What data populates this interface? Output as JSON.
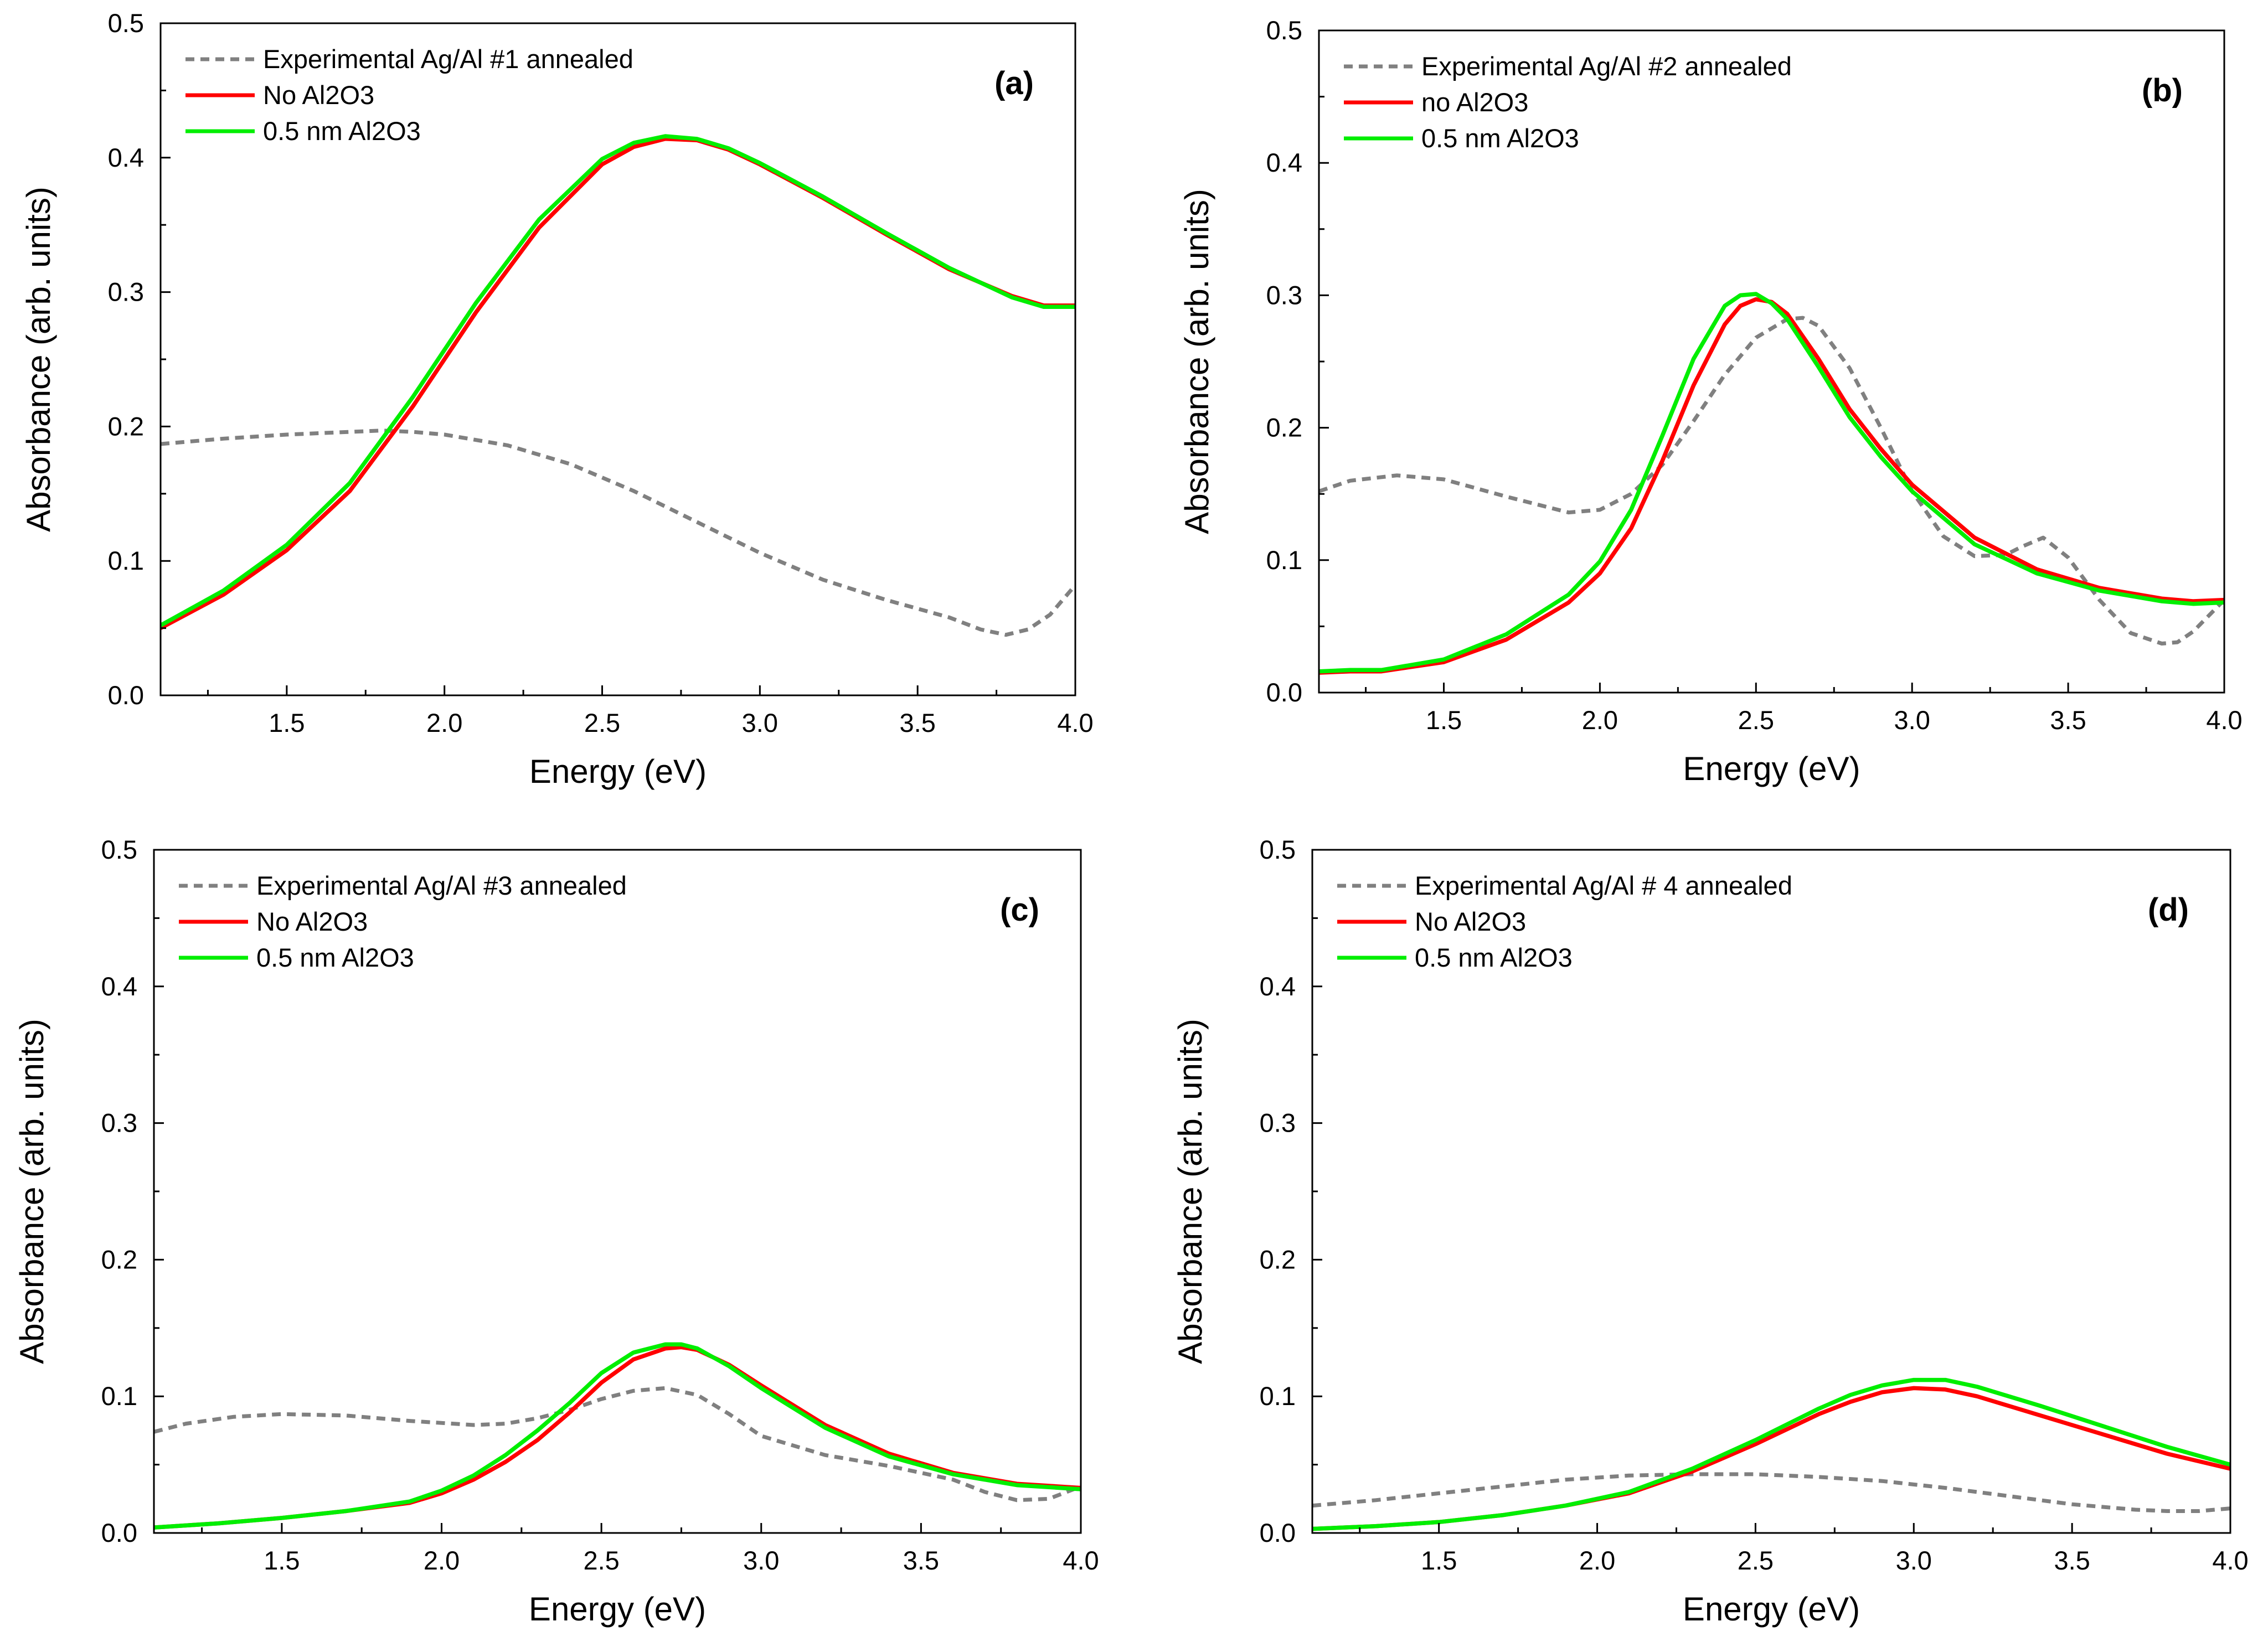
{
  "chart_data": [
    {
      "type": "line",
      "panel_label": "(a)",
      "xlabel": "Energy (eV)",
      "ylabel": "Absorbance (arb. units)",
      "xlim": [
        1.1,
        4.0
      ],
      "ylim": [
        0.0,
        0.5
      ],
      "xticks": [
        "1.5",
        "2.0",
        "2.5",
        "3.0",
        "3.5",
        "4.0"
      ],
      "yticks": [
        "0.0",
        "0.1",
        "0.2",
        "0.3",
        "0.4",
        "0.5"
      ],
      "legend_position": "top-left",
      "series": [
        {
          "name": "Experimental Ag/Al #1 annealed",
          "color": "#808080",
          "style": "dashed",
          "x": [
            1.1,
            1.3,
            1.5,
            1.7,
            1.8,
            1.9,
            2.0,
            2.2,
            2.4,
            2.6,
            2.8,
            3.0,
            3.2,
            3.4,
            3.6,
            3.7,
            3.78,
            3.85,
            3.92,
            4.0
          ],
          "y": [
            0.187,
            0.191,
            0.194,
            0.196,
            0.197,
            0.196,
            0.194,
            0.186,
            0.172,
            0.152,
            0.129,
            0.106,
            0.086,
            0.071,
            0.058,
            0.049,
            0.045,
            0.049,
            0.06,
            0.082
          ]
        },
        {
          "name": "No Al2O3",
          "color": "#ff0000",
          "style": "solid",
          "x": [
            1.1,
            1.3,
            1.5,
            1.7,
            1.9,
            2.1,
            2.3,
            2.5,
            2.6,
            2.7,
            2.8,
            2.9,
            3.0,
            3.2,
            3.4,
            3.6,
            3.8,
            3.9,
            4.0
          ],
          "y": [
            0.05,
            0.075,
            0.108,
            0.152,
            0.215,
            0.285,
            0.348,
            0.395,
            0.408,
            0.414,
            0.413,
            0.406,
            0.395,
            0.37,
            0.343,
            0.317,
            0.297,
            0.29,
            0.29
          ]
        },
        {
          "name": "0.5 nm Al2O3",
          "color": "#00ee00",
          "style": "solid",
          "x": [
            1.1,
            1.3,
            1.5,
            1.7,
            1.9,
            2.1,
            2.3,
            2.5,
            2.6,
            2.7,
            2.8,
            2.9,
            3.0,
            3.2,
            3.4,
            3.6,
            3.8,
            3.9,
            4.0
          ],
          "y": [
            0.052,
            0.078,
            0.112,
            0.158,
            0.222,
            0.292,
            0.354,
            0.399,
            0.411,
            0.416,
            0.414,
            0.407,
            0.396,
            0.371,
            0.344,
            0.318,
            0.296,
            0.289,
            0.289
          ]
        }
      ]
    },
    {
      "type": "line",
      "panel_label": "(b)",
      "xlabel": "Energy (eV)",
      "ylabel": "Absorbance (arb. units)",
      "xlim": [
        1.1,
        4.0
      ],
      "ylim": [
        0.0,
        0.5
      ],
      "xticks": [
        "1.5",
        "2.0",
        "2.5",
        "3.0",
        "3.5",
        "4.0"
      ],
      "yticks": [
        "0.0",
        "0.1",
        "0.2",
        "0.3",
        "0.4",
        "0.5"
      ],
      "legend_position": "top-left",
      "series": [
        {
          "name": "Experimental Ag/Al #2 annealed",
          "color": "#808080",
          "style": "dashed",
          "x": [
            1.1,
            1.2,
            1.35,
            1.5,
            1.7,
            1.9,
            2.0,
            2.1,
            2.2,
            2.3,
            2.4,
            2.5,
            2.6,
            2.65,
            2.7,
            2.8,
            2.9,
            3.0,
            3.1,
            3.2,
            3.3,
            3.35,
            3.42,
            3.5,
            3.6,
            3.7,
            3.8,
            3.85,
            3.9,
            4.0
          ],
          "y": [
            0.152,
            0.16,
            0.164,
            0.161,
            0.148,
            0.136,
            0.138,
            0.15,
            0.172,
            0.205,
            0.24,
            0.268,
            0.282,
            0.283,
            0.277,
            0.245,
            0.2,
            0.152,
            0.118,
            0.103,
            0.104,
            0.11,
            0.117,
            0.102,
            0.07,
            0.045,
            0.037,
            0.038,
            0.046,
            0.07
          ]
        },
        {
          "name": "no Al2O3",
          "color": "#ff0000",
          "style": "solid",
          "x": [
            1.1,
            1.2,
            1.3,
            1.5,
            1.7,
            1.9,
            2.0,
            2.1,
            2.2,
            2.3,
            2.4,
            2.45,
            2.5,
            2.55,
            2.6,
            2.7,
            2.8,
            2.9,
            3.0,
            3.2,
            3.4,
            3.6,
            3.8,
            3.9,
            4.0
          ],
          "y": [
            0.015,
            0.016,
            0.016,
            0.023,
            0.04,
            0.068,
            0.09,
            0.124,
            0.175,
            0.232,
            0.278,
            0.292,
            0.297,
            0.295,
            0.286,
            0.252,
            0.214,
            0.184,
            0.157,
            0.117,
            0.093,
            0.079,
            0.071,
            0.069,
            0.07
          ]
        },
        {
          "name": "0.5 nm Al2O3",
          "color": "#00ee00",
          "style": "solid",
          "x": [
            1.1,
            1.2,
            1.3,
            1.5,
            1.7,
            1.9,
            2.0,
            2.1,
            2.2,
            2.3,
            2.4,
            2.45,
            2.5,
            2.55,
            2.6,
            2.7,
            2.8,
            2.9,
            3.0,
            3.2,
            3.4,
            3.6,
            3.8,
            3.9,
            4.0
          ],
          "y": [
            0.016,
            0.017,
            0.017,
            0.025,
            0.044,
            0.074,
            0.099,
            0.138,
            0.194,
            0.252,
            0.292,
            0.3,
            0.301,
            0.294,
            0.282,
            0.246,
            0.208,
            0.178,
            0.152,
            0.112,
            0.09,
            0.077,
            0.069,
            0.067,
            0.068
          ]
        }
      ]
    },
    {
      "type": "line",
      "panel_label": "(c)",
      "xlabel": "Energy (eV)",
      "ylabel": "Absorbance (arb. units)",
      "xlim": [
        1.1,
        4.0
      ],
      "ylim": [
        0.0,
        0.5
      ],
      "xticks": [
        "1.5",
        "2.0",
        "2.5",
        "3.0",
        "3.5",
        "4.0"
      ],
      "yticks": [
        "0.0",
        "0.1",
        "0.2",
        "0.3",
        "0.4",
        "0.5"
      ],
      "legend_position": "top-left",
      "series": [
        {
          "name": "Experimental Ag/Al #3 annealed",
          "color": "#808080",
          "style": "dashed",
          "x": [
            1.1,
            1.2,
            1.35,
            1.5,
            1.7,
            1.9,
            2.1,
            2.2,
            2.3,
            2.4,
            2.5,
            2.6,
            2.7,
            2.8,
            2.9,
            3.0,
            3.2,
            3.4,
            3.6,
            3.7,
            3.8,
            3.9,
            4.0
          ],
          "y": [
            0.074,
            0.08,
            0.085,
            0.087,
            0.086,
            0.082,
            0.079,
            0.08,
            0.084,
            0.09,
            0.098,
            0.104,
            0.106,
            0.101,
            0.087,
            0.071,
            0.057,
            0.049,
            0.039,
            0.03,
            0.024,
            0.025,
            0.034
          ]
        },
        {
          "name": "No Al2O3",
          "color": "#ff0000",
          "style": "solid",
          "x": [
            1.1,
            1.3,
            1.5,
            1.7,
            1.9,
            2.0,
            2.1,
            2.2,
            2.3,
            2.4,
            2.5,
            2.6,
            2.7,
            2.75,
            2.8,
            2.9,
            3.0,
            3.2,
            3.4,
            3.6,
            3.8,
            4.0
          ],
          "y": [
            0.004,
            0.007,
            0.011,
            0.016,
            0.022,
            0.029,
            0.039,
            0.052,
            0.068,
            0.088,
            0.11,
            0.127,
            0.135,
            0.136,
            0.134,
            0.123,
            0.108,
            0.079,
            0.058,
            0.044,
            0.036,
            0.033
          ]
        },
        {
          "name": "0.5 nm Al2O3",
          "color": "#00ee00",
          "style": "solid",
          "x": [
            1.1,
            1.3,
            1.5,
            1.7,
            1.9,
            2.0,
            2.1,
            2.2,
            2.3,
            2.4,
            2.5,
            2.6,
            2.7,
            2.75,
            2.8,
            2.9,
            3.0,
            3.2,
            3.4,
            3.6,
            3.8,
            4.0
          ],
          "y": [
            0.004,
            0.007,
            0.011,
            0.016,
            0.023,
            0.031,
            0.042,
            0.057,
            0.075,
            0.095,
            0.117,
            0.132,
            0.138,
            0.138,
            0.135,
            0.122,
            0.106,
            0.077,
            0.056,
            0.043,
            0.035,
            0.032
          ]
        }
      ]
    },
    {
      "type": "line",
      "panel_label": "(d)",
      "xlabel": "Energy (eV)",
      "ylabel": "Absorbance (arb. units)",
      "xlim": [
        1.1,
        4.0
      ],
      "ylim": [
        0.0,
        0.5
      ],
      "xticks": [
        "1.5",
        "2.0",
        "2.5",
        "3.0",
        "3.5",
        "4.0"
      ],
      "yticks": [
        "0.0",
        "0.1",
        "0.2",
        "0.3",
        "0.4",
        "0.5"
      ],
      "legend_position": "top-left",
      "series": [
        {
          "name": "Experimental Ag/Al # 4 annealed",
          "color": "#808080",
          "style": "dashed",
          "x": [
            1.1,
            1.2,
            1.3,
            1.5,
            1.7,
            1.9,
            2.1,
            2.3,
            2.5,
            2.7,
            2.9,
            3.1,
            3.3,
            3.5,
            3.7,
            3.8,
            3.9,
            4.0
          ],
          "y": [
            0.02,
            0.022,
            0.024,
            0.029,
            0.034,
            0.039,
            0.042,
            0.043,
            0.043,
            0.041,
            0.038,
            0.033,
            0.027,
            0.021,
            0.017,
            0.016,
            0.016,
            0.018
          ]
        },
        {
          "name": "No Al2O3",
          "color": "#ff0000",
          "style": "solid",
          "x": [
            1.1,
            1.3,
            1.5,
            1.7,
            1.9,
            2.1,
            2.3,
            2.5,
            2.7,
            2.8,
            2.9,
            3.0,
            3.1,
            3.2,
            3.4,
            3.6,
            3.8,
            4.0
          ],
          "y": [
            0.003,
            0.005,
            0.008,
            0.013,
            0.02,
            0.029,
            0.045,
            0.065,
            0.087,
            0.096,
            0.103,
            0.106,
            0.105,
            0.1,
            0.086,
            0.072,
            0.058,
            0.047
          ]
        },
        {
          "name": "0.5 nm Al2O3",
          "color": "#00ee00",
          "style": "solid",
          "x": [
            1.1,
            1.3,
            1.5,
            1.7,
            1.9,
            2.1,
            2.3,
            2.5,
            2.7,
            2.8,
            2.9,
            3.0,
            3.1,
            3.2,
            3.4,
            3.6,
            3.8,
            4.0
          ],
          "y": [
            0.003,
            0.005,
            0.008,
            0.013,
            0.02,
            0.03,
            0.047,
            0.068,
            0.091,
            0.101,
            0.108,
            0.112,
            0.112,
            0.107,
            0.093,
            0.078,
            0.063,
            0.05
          ]
        }
      ]
    }
  ]
}
